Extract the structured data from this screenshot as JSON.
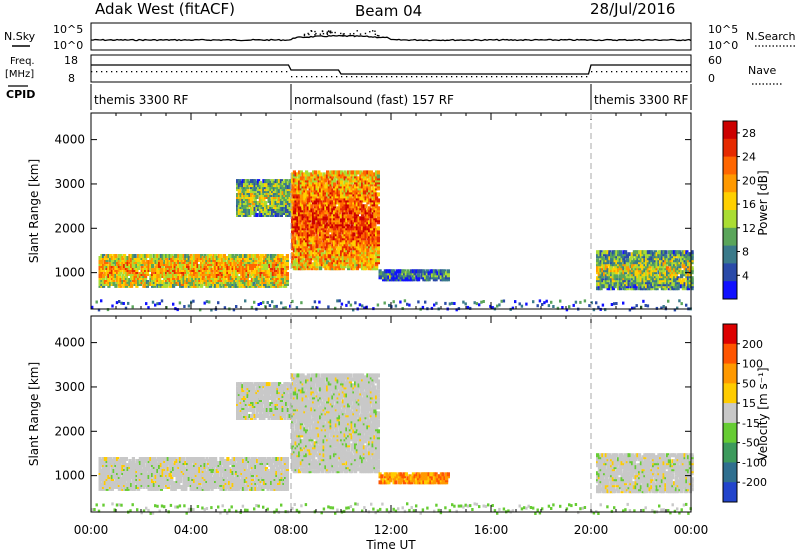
{
  "header": {
    "radar": "Adak West (fitACF)",
    "beam": "Beam 04",
    "date": "28/Jul/2016"
  },
  "noise_panel": {
    "left_label": "N.Sky",
    "right_label": "N.Search",
    "tick_top": "10^5",
    "tick_bottom": "10^0"
  },
  "freq_panel": {
    "left_label_line1": "Freq.",
    "left_label_line2": "[MHz]",
    "left_tick_top": "18",
    "left_tick_bottom": "8",
    "right_tick_top": "60",
    "right_tick_bottom": "0",
    "right_label": "Nave"
  },
  "cpid": {
    "label": "CPID",
    "segments": [
      {
        "start": 0,
        "end": 8,
        "text": "themis 3300 RF"
      },
      {
        "start": 8,
        "end": 20,
        "text": "normalsound (fast) 157 RF"
      },
      {
        "start": 20,
        "end": 24,
        "text": "themis 3300 RF"
      }
    ]
  },
  "chart_data": [
    {
      "type": "heatmap",
      "title": "Power",
      "ylabel": "Slant Range [km]",
      "xlabel": "Time UT",
      "ylim": [
        180,
        4600
      ],
      "xlim": [
        0,
        24
      ],
      "xticks": [
        "00:00",
        "04:00",
        "08:00",
        "12:00",
        "16:00",
        "20:00",
        "00:00"
      ],
      "yticks": [
        1000,
        2000,
        3000,
        4000
      ],
      "colorbar": {
        "label": "Power [dB]",
        "ticks": [
          4,
          8,
          12,
          16,
          20,
          24,
          28
        ],
        "range": [
          0,
          30
        ],
        "colors": [
          "#1010ff",
          "#2a4aa8",
          "#3a7a8a",
          "#5aa55a",
          "#aadd33",
          "#ffd000",
          "#ff9900",
          "#ff6600",
          "#e62a00",
          "#cc0000"
        ]
      },
      "regions": [
        {
          "t0": 0.3,
          "t1": 7.8,
          "r0": 700,
          "r1": 1400,
          "level": 0.7
        },
        {
          "t0": 5.8,
          "t1": 8.6,
          "r0": 2300,
          "r1": 3100,
          "level": 0.5
        },
        {
          "t0": 8.0,
          "t1": 11.5,
          "r0": 1100,
          "r1": 3300,
          "level": 0.85
        },
        {
          "t0": 11.5,
          "t1": 14.3,
          "r0": 850,
          "r1": 1050,
          "level": 0.35
        },
        {
          "t0": 20.2,
          "t1": 24.0,
          "r0": 650,
          "r1": 1500,
          "level": 0.5
        }
      ],
      "ground_scatter": {
        "t0": 0,
        "t1": 24,
        "r0": 180,
        "r1": 400
      }
    },
    {
      "type": "heatmap",
      "title": "Velocity",
      "ylabel": "Slant Range [km]",
      "xlabel": "Time UT",
      "ylim": [
        180,
        4600
      ],
      "xlim": [
        0,
        24
      ],
      "xticks": [
        "00:00",
        "04:00",
        "08:00",
        "12:00",
        "16:00",
        "20:00",
        "00:00"
      ],
      "yticks": [
        1000,
        2000,
        3000,
        4000
      ],
      "colorbar": {
        "label": "Velocity [m s⁻¹]",
        "ticks": [
          200,
          100,
          50,
          15,
          -15,
          -50,
          -100,
          -200
        ],
        "colors": [
          "#2244cc",
          "#2f6f8f",
          "#3c9a5c",
          "#66cc33",
          "#c8c8c8",
          "#ffcc00",
          "#ff9900",
          "#ff5500",
          "#dd0000"
        ]
      },
      "regions": [
        {
          "t0": 0.3,
          "t1": 7.8,
          "r0": 700,
          "r1": 1400,
          "level": 0.5
        },
        {
          "t0": 5.8,
          "t1": 8.6,
          "r0": 2300,
          "r1": 3100,
          "level": 0.5
        },
        {
          "t0": 8.0,
          "t1": 11.5,
          "r0": 1100,
          "r1": 3300,
          "level": 0.5
        },
        {
          "t0": 11.5,
          "t1": 14.3,
          "r0": 850,
          "r1": 1050,
          "level": 0.75
        },
        {
          "t0": 20.2,
          "t1": 24.0,
          "r0": 650,
          "r1": 1500,
          "level": 0.5
        }
      ],
      "ground_scatter": {
        "t0": 0,
        "t1": 24,
        "r0": 180,
        "r1": 400
      }
    }
  ],
  "x_axis": {
    "ticks": [
      "00:00",
      "04:00",
      "08:00",
      "12:00",
      "16:00",
      "20:00",
      "00:00"
    ],
    "label": "Time UT"
  }
}
